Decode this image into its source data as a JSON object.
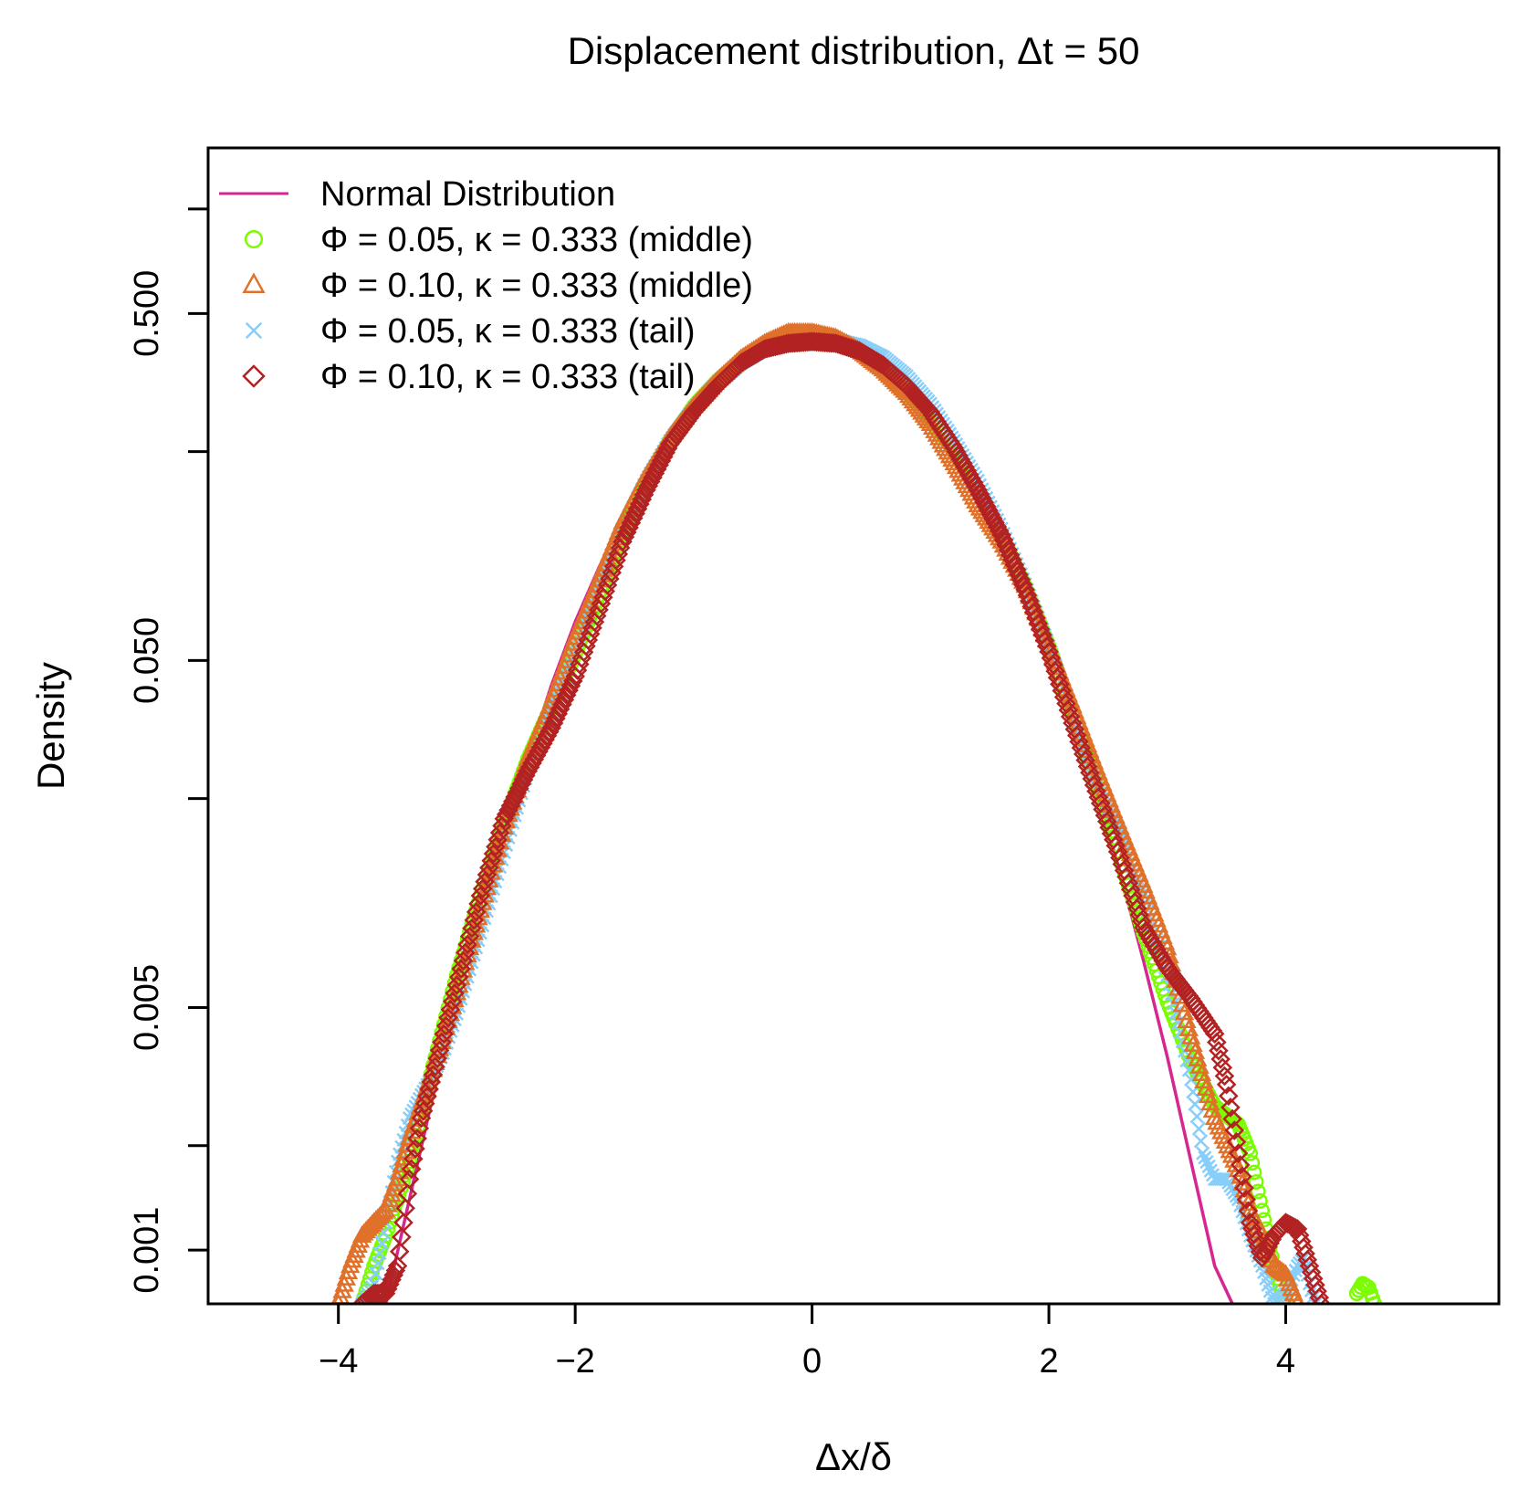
{
  "chart_data": {
    "type": "line",
    "title": "Displacement distribution, Δt = 50",
    "xlabel": "Δx/δ",
    "ylabel": "Density",
    "xlim": [
      -5.1,
      5.8
    ],
    "ylim": [
      0.0007,
      1.5
    ],
    "y_scale": "log",
    "grid": false,
    "legend_position": "top-left",
    "x_ticks": [
      -4,
      -2,
      0,
      2,
      4
    ],
    "x_tick_labels": [
      "−4",
      "−2",
      "0",
      "2",
      "4"
    ],
    "y_ticks": [
      0.001,
      0.002,
      0.005,
      0.02,
      0.05,
      0.2,
      0.5,
      1.0
    ],
    "y_tick_labels": [
      "0.001",
      "",
      "0.005",
      "",
      "0.050",
      "",
      "0.500",
      ""
    ],
    "series": [
      {
        "name": "Normal Distribution",
        "legend_label": "Normal Distribution",
        "color": "#d6268f",
        "marker": "line",
        "points": [
          [
            -3.6,
            0.0007
          ],
          [
            -3.4,
            0.0014
          ],
          [
            -3.2,
            0.0028
          ],
          [
            -3.0,
            0.0055
          ],
          [
            -2.8,
            0.0098
          ],
          [
            -2.6,
            0.0168
          ],
          [
            -2.4,
            0.0263
          ],
          [
            -2.2,
            0.0425
          ],
          [
            -2.0,
            0.0646
          ],
          [
            -1.8,
            0.0926
          ],
          [
            -1.6,
            0.129
          ],
          [
            -1.4,
            0.173
          ],
          [
            -1.2,
            0.222
          ],
          [
            -1.0,
            0.273
          ],
          [
            -0.8,
            0.322
          ],
          [
            -0.6,
            0.364
          ],
          [
            -0.4,
            0.395
          ],
          [
            -0.2,
            0.412
          ],
          [
            0.0,
            0.415
          ],
          [
            0.2,
            0.405
          ],
          [
            0.4,
            0.38
          ],
          [
            0.6,
            0.343
          ],
          [
            0.8,
            0.298
          ],
          [
            1.0,
            0.249
          ],
          [
            1.2,
            0.2
          ],
          [
            1.4,
            0.154
          ],
          [
            1.6,
            0.113
          ],
          [
            1.8,
            0.079
          ],
          [
            2.0,
            0.0535
          ],
          [
            2.2,
            0.0345
          ],
          [
            2.4,
            0.0212
          ],
          [
            2.6,
            0.0123
          ],
          [
            2.8,
            0.0068
          ],
          [
            3.0,
            0.0036
          ],
          [
            3.2,
            0.0018
          ],
          [
            3.4,
            0.0009
          ],
          [
            3.55,
            0.0007
          ]
        ]
      },
      {
        "name": "phi005-middle",
        "legend_label": "Φ = 0.05, κ = 0.333 (middle)",
        "color": "#7cfc00",
        "marker": "circle",
        "points": [
          [
            -3.8,
            0.0007
          ],
          [
            -3.7,
            0.0009
          ],
          [
            -3.6,
            0.0011
          ],
          [
            -3.4,
            0.0018
          ],
          [
            -3.2,
            0.0034
          ],
          [
            -3.0,
            0.0062
          ],
          [
            -2.8,
            0.0105
          ],
          [
            -2.6,
            0.017
          ],
          [
            -2.4,
            0.026
          ],
          [
            -2.2,
            0.037
          ],
          [
            -2.0,
            0.052
          ],
          [
            -1.8,
            0.077
          ],
          [
            -1.6,
            0.115
          ],
          [
            -1.4,
            0.16
          ],
          [
            -1.2,
            0.215
          ],
          [
            -1.0,
            0.27
          ],
          [
            -0.8,
            0.32
          ],
          [
            -0.6,
            0.365
          ],
          [
            -0.4,
            0.4
          ],
          [
            -0.2,
            0.42
          ],
          [
            0.0,
            0.425
          ],
          [
            0.2,
            0.415
          ],
          [
            0.4,
            0.39
          ],
          [
            0.6,
            0.35
          ],
          [
            0.8,
            0.3
          ],
          [
            1.0,
            0.25
          ],
          [
            1.2,
            0.2
          ],
          [
            1.4,
            0.155
          ],
          [
            1.6,
            0.115
          ],
          [
            1.8,
            0.082
          ],
          [
            2.0,
            0.055
          ],
          [
            2.2,
            0.035
          ],
          [
            2.4,
            0.022
          ],
          [
            2.6,
            0.0135
          ],
          [
            2.8,
            0.0082
          ],
          [
            3.0,
            0.0052
          ],
          [
            3.2,
            0.0035
          ],
          [
            3.4,
            0.0026
          ],
          [
            3.6,
            0.0023
          ],
          [
            3.7,
            0.0019
          ],
          [
            3.8,
            0.0013
          ],
          [
            3.9,
            0.0009
          ],
          [
            4.0,
            0.0007
          ]
        ],
        "extra_points": [
          [
            4.6,
            0.00075
          ],
          [
            4.65,
            0.0008
          ],
          [
            4.7,
            0.00078
          ],
          [
            4.75,
            0.0007
          ]
        ]
      },
      {
        "name": "phi010-middle",
        "legend_label": "Φ = 0.10, κ = 0.333 (middle)",
        "color": "#e0712a",
        "marker": "triangle",
        "points": [
          [
            -4.0,
            0.0007
          ],
          [
            -3.9,
            0.0009
          ],
          [
            -3.8,
            0.0011
          ],
          [
            -3.7,
            0.0012
          ],
          [
            -3.6,
            0.0013
          ],
          [
            -3.5,
            0.0016
          ],
          [
            -3.4,
            0.0021
          ],
          [
            -3.2,
            0.0033
          ],
          [
            -3.0,
            0.0055
          ],
          [
            -2.8,
            0.0095
          ],
          [
            -2.6,
            0.0165
          ],
          [
            -2.4,
            0.026
          ],
          [
            -2.2,
            0.038
          ],
          [
            -2.0,
            0.058
          ],
          [
            -1.8,
            0.085
          ],
          [
            -1.6,
            0.125
          ],
          [
            -1.4,
            0.17
          ],
          [
            -1.2,
            0.22
          ],
          [
            -1.0,
            0.27
          ],
          [
            -0.8,
            0.32
          ],
          [
            -0.6,
            0.37
          ],
          [
            -0.4,
            0.41
          ],
          [
            -0.2,
            0.44
          ],
          [
            0.0,
            0.44
          ],
          [
            0.2,
            0.425
          ],
          [
            0.4,
            0.39
          ],
          [
            0.6,
            0.345
          ],
          [
            0.8,
            0.295
          ],
          [
            1.0,
            0.24
          ],
          [
            1.2,
            0.185
          ],
          [
            1.4,
            0.14
          ],
          [
            1.6,
            0.11
          ],
          [
            1.8,
            0.082
          ],
          [
            2.0,
            0.055
          ],
          [
            2.2,
            0.037
          ],
          [
            2.4,
            0.0245
          ],
          [
            2.6,
            0.0165
          ],
          [
            2.8,
            0.0112
          ],
          [
            3.0,
            0.0074
          ],
          [
            3.2,
            0.0041
          ],
          [
            3.4,
            0.0024
          ],
          [
            3.6,
            0.0017
          ],
          [
            3.7,
            0.0013
          ],
          [
            3.8,
            0.0011
          ],
          [
            3.9,
            0.0009
          ],
          [
            4.0,
            0.00085
          ],
          [
            4.1,
            0.0007
          ]
        ]
      },
      {
        "name": "phi005-tail",
        "legend_label": "Φ = 0.05, κ = 0.333 (tail)",
        "color": "#87cefa",
        "marker": "cross",
        "points": [
          [
            -3.8,
            0.0007
          ],
          [
            -3.7,
            0.0008
          ],
          [
            -3.6,
            0.0012
          ],
          [
            -3.5,
            0.0018
          ],
          [
            -3.4,
            0.0024
          ],
          [
            -3.3,
            0.0028
          ],
          [
            -3.2,
            0.0032
          ],
          [
            -3.1,
            0.0038
          ],
          [
            -3.0,
            0.0048
          ],
          [
            -2.8,
            0.0082
          ],
          [
            -2.6,
            0.014
          ],
          [
            -2.4,
            0.024
          ],
          [
            -2.2,
            0.037
          ],
          [
            -2.0,
            0.055
          ],
          [
            -1.8,
            0.082
          ],
          [
            -1.6,
            0.12
          ],
          [
            -1.4,
            0.165
          ],
          [
            -1.2,
            0.215
          ],
          [
            -1.0,
            0.265
          ],
          [
            -0.8,
            0.315
          ],
          [
            -0.6,
            0.36
          ],
          [
            -0.4,
            0.395
          ],
          [
            -0.2,
            0.415
          ],
          [
            0.0,
            0.42
          ],
          [
            0.2,
            0.42
          ],
          [
            0.4,
            0.405
          ],
          [
            0.6,
            0.375
          ],
          [
            0.8,
            0.33
          ],
          [
            1.0,
            0.275
          ],
          [
            1.2,
            0.215
          ],
          [
            1.4,
            0.165
          ],
          [
            1.6,
            0.12
          ],
          [
            1.8,
            0.083
          ],
          [
            2.0,
            0.055
          ],
          [
            2.2,
            0.035
          ],
          [
            2.4,
            0.023
          ],
          [
            2.6,
            0.016
          ],
          [
            2.8,
            0.0105
          ],
          [
            3.0,
            0.0062
          ],
          [
            3.2,
            0.0031
          ],
          [
            3.3,
            0.0019
          ],
          [
            3.4,
            0.0016
          ],
          [
            3.5,
            0.0016
          ],
          [
            3.6,
            0.0014
          ],
          [
            3.7,
            0.0011
          ],
          [
            3.8,
            0.0009
          ],
          [
            3.9,
            0.0007
          ],
          [
            4.0,
            0.00075
          ],
          [
            4.1,
            0.0009
          ],
          [
            4.15,
            0.00095
          ],
          [
            4.2,
            0.0008
          ],
          [
            4.25,
            0.0007
          ]
        ]
      },
      {
        "name": "phi010-tail",
        "legend_label": "Φ = 0.10, κ = 0.333 (tail)",
        "color": "#b22222",
        "marker": "diamond",
        "points": [
          [
            -3.8,
            0.0007
          ],
          [
            -3.7,
            0.00075
          ],
          [
            -3.6,
            0.00075
          ],
          [
            -3.5,
            0.0009
          ],
          [
            -3.4,
            0.0016
          ],
          [
            -3.3,
            0.0024
          ],
          [
            -3.2,
            0.0032
          ],
          [
            -3.0,
            0.0058
          ],
          [
            -2.8,
            0.0105
          ],
          [
            -2.6,
            0.0175
          ],
          [
            -2.4,
            0.024
          ],
          [
            -2.2,
            0.032
          ],
          [
            -2.0,
            0.045
          ],
          [
            -1.8,
            0.07
          ],
          [
            -1.6,
            0.11
          ],
          [
            -1.4,
            0.155
          ],
          [
            -1.2,
            0.21
          ],
          [
            -1.0,
            0.26
          ],
          [
            -0.8,
            0.31
          ],
          [
            -0.6,
            0.36
          ],
          [
            -0.4,
            0.395
          ],
          [
            -0.2,
            0.41
          ],
          [
            0.0,
            0.415
          ],
          [
            0.2,
            0.41
          ],
          [
            0.4,
            0.39
          ],
          [
            0.6,
            0.355
          ],
          [
            0.8,
            0.31
          ],
          [
            1.0,
            0.26
          ],
          [
            1.2,
            0.205
          ],
          [
            1.4,
            0.155
          ],
          [
            1.6,
            0.115
          ],
          [
            1.8,
            0.08
          ],
          [
            2.0,
            0.053
          ],
          [
            2.2,
            0.033
          ],
          [
            2.4,
            0.021
          ],
          [
            2.6,
            0.0135
          ],
          [
            2.8,
            0.0085
          ],
          [
            3.0,
            0.0065
          ],
          [
            3.2,
            0.0053
          ],
          [
            3.4,
            0.0042
          ],
          [
            3.5,
            0.003
          ],
          [
            3.6,
            0.0019
          ],
          [
            3.7,
            0.0012
          ],
          [
            3.8,
            0.00095
          ],
          [
            3.9,
            0.0011
          ],
          [
            4.0,
            0.0012
          ],
          [
            4.1,
            0.00115
          ],
          [
            4.2,
            0.0009
          ],
          [
            4.3,
            0.0007
          ]
        ]
      }
    ]
  }
}
